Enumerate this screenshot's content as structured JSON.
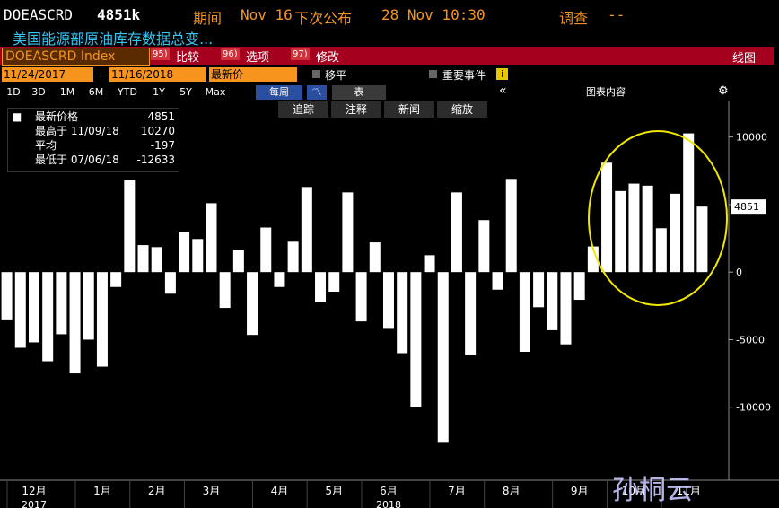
{
  "header": {
    "ticker": "DOEASCRD",
    "value": "4851k",
    "period_label": "期间",
    "period": "Nov 16",
    "next_label": "下次公布",
    "next": "28 Nov 10:30",
    "survey_label": "调查",
    "survey": "--",
    "description": "美国能源部原油库存数据总变..."
  },
  "toolbar": {
    "security": "DOEASCRD Index",
    "menus": [
      {
        "num": "95)",
        "label": "比较"
      },
      {
        "num": "96)",
        "label": "选项"
      },
      {
        "num": "97)",
        "label": "修改"
      }
    ],
    "chart_kind": "线图"
  },
  "dates": {
    "start": "11/24/2017",
    "sep": "-",
    "end": "11/16/2018",
    "field": "最新价",
    "moving_avg": "移平",
    "events": "重要事件"
  },
  "ranges": [
    "1D",
    "3D",
    "1M",
    "6M",
    "YTD",
    "1Y",
    "5Y",
    "Max"
  ],
  "frequency": "每周",
  "table": "表",
  "chart_contents": "图表内容",
  "tools": [
    "追踪",
    "注释",
    "新闻",
    "缩放"
  ],
  "legend": {
    "latest": "最新价格",
    "high": "最高于 11/09/18",
    "average": "平均",
    "average_value": -197,
    "low": "最低于 07/06/18"
  },
  "watermark": "孙桐云",
  "chart_data": {
    "type": "bar",
    "color": "#ffffff",
    "categories": [
      null,
      null,
      "12月",
      null,
      null,
      null,
      null,
      "1月",
      null,
      null,
      null,
      "2月",
      null,
      null,
      null,
      "3月",
      null,
      null,
      null,
      null,
      "4月",
      null,
      null,
      null,
      "5月",
      null,
      null,
      null,
      "6月",
      null,
      null,
      null,
      null,
      "7月",
      null,
      null,
      null,
      "8月",
      null,
      null,
      null,
      null,
      "9月",
      null,
      null,
      null,
      "10月",
      null,
      null,
      null,
      "11月",
      null
    ],
    "years": [
      null,
      null,
      "2017",
      null,
      null,
      null,
      null,
      null,
      null,
      null,
      null,
      null,
      null,
      null,
      null,
      null,
      null,
      null,
      null,
      null,
      null,
      null,
      null,
      null,
      null,
      null,
      null,
      null,
      "2018",
      null,
      null,
      null,
      null,
      null,
      null,
      null,
      null,
      null,
      null,
      null,
      null,
      null,
      null,
      null,
      null,
      null,
      null,
      null,
      null,
      null,
      null,
      null
    ],
    "values": [
      -3500,
      -5600,
      -5200,
      -6600,
      -4600,
      -7500,
      -5000,
      -7000,
      -1100,
      6800,
      2000,
      1850,
      -1600,
      3000,
      2450,
      5100,
      -2650,
      1650,
      -4650,
      3300,
      -1100,
      2250,
      6300,
      -2200,
      -1450,
      5900,
      -3650,
      2200,
      -4200,
      -6000,
      -10000,
      1250,
      -12633,
      5900,
      -6150,
      3850,
      -1300,
      6900,
      -5900,
      -2600,
      -4300,
      -5350,
      -2050,
      1900,
      8100,
      6000,
      6550,
      6400,
      3250,
      5800,
      10270,
      4851
    ],
    "ylim": [
      -15400,
      12700
    ],
    "yticks": [
      10000,
      5000,
      0,
      -5000,
      -10000
    ]
  }
}
